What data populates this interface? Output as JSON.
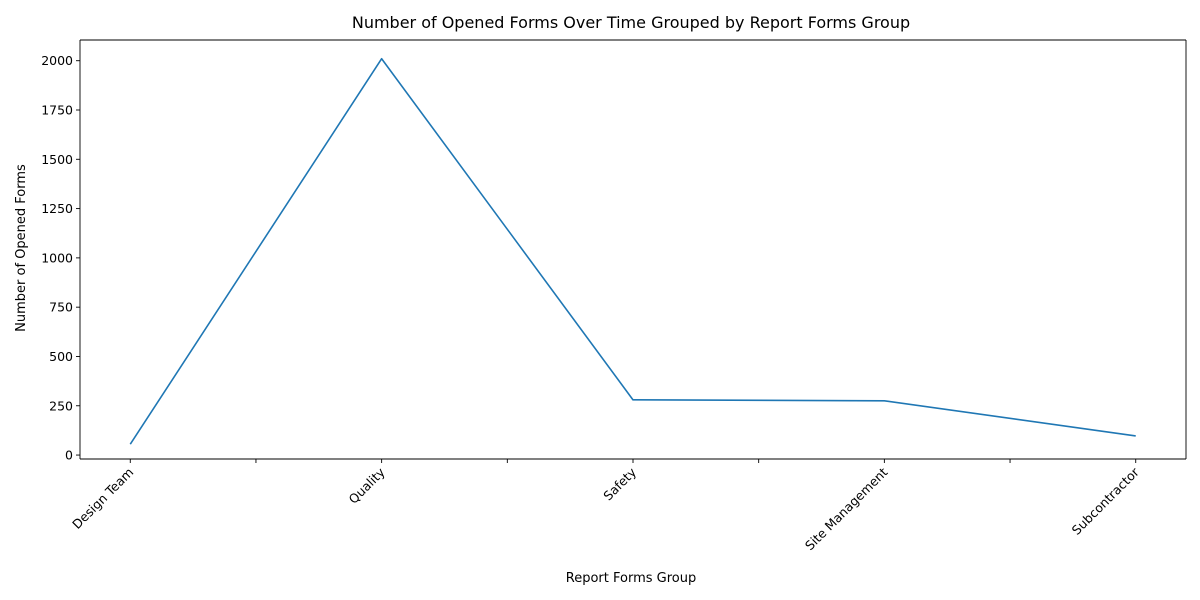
{
  "chart_data": {
    "type": "line",
    "title": "Number of Opened Forms Over Time Grouped by Report Forms Group",
    "xlabel": "Report Forms Group",
    "ylabel": "Number of Opened Forms",
    "categories": [
      "Design Team",
      "Quality",
      "Safety",
      "Site Management",
      "Subcontractor"
    ],
    "values": [
      55,
      2010,
      280,
      275,
      97
    ],
    "ylim": [
      -20,
      2105
    ],
    "yticks": [
      0,
      250,
      500,
      750,
      1000,
      1250,
      1500,
      1750,
      2000
    ],
    "ytick_labels": [
      "0",
      "250",
      "500",
      "750",
      "1000",
      "1250",
      "1500",
      "1750",
      "2000"
    ],
    "grid": false,
    "line_color": "#1f77b4"
  }
}
